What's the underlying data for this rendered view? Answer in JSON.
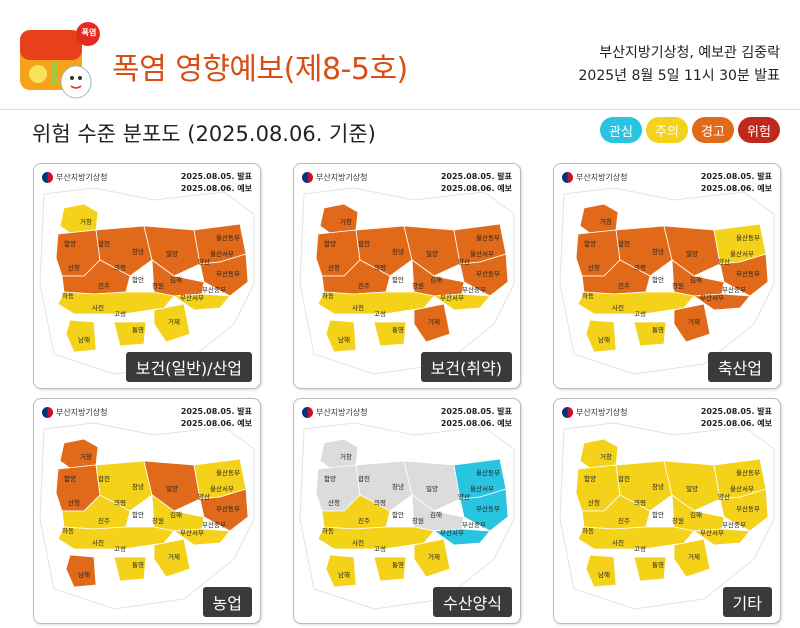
{
  "header": {
    "badge": "폭염",
    "title": "폭염 영향예보(제8-5호)",
    "issuer": "부산지방기상청, 예보관 김중락",
    "issued": "2025년 8월 5일 11시 30분 발표",
    "subtitle": "위험 수준 분포도 (2025.08.06. 기준)"
  },
  "legend": [
    {
      "label": "관심",
      "color": "#29c4e0"
    },
    {
      "label": "주의",
      "color": "#f5d21a"
    },
    {
      "label": "경고",
      "color": "#e06a1a"
    },
    {
      "label": "위험",
      "color": "#c0271d"
    }
  ],
  "card_text": {
    "org": "부산지방기상청",
    "issued": "2025.08.05. 발표",
    "valid": "2025.08.06. 예보"
  },
  "regions": [
    "거창",
    "함양",
    "합천",
    "창녕",
    "밀양",
    "울산동부",
    "울산서부",
    "산청",
    "의령",
    "함안",
    "창원",
    "양산",
    "김해",
    "부산동부",
    "부산중부",
    "부산서부",
    "하동",
    "진주",
    "사천",
    "고성",
    "통영",
    "거제",
    "남해"
  ],
  "maps": [
    {
      "caption": "보건(일반)/산업"
    },
    {
      "caption": "보건(취약)"
    },
    {
      "caption": "축산업"
    },
    {
      "caption": "농업"
    },
    {
      "caption": "수산양식"
    },
    {
      "caption": "기타"
    }
  ]
}
